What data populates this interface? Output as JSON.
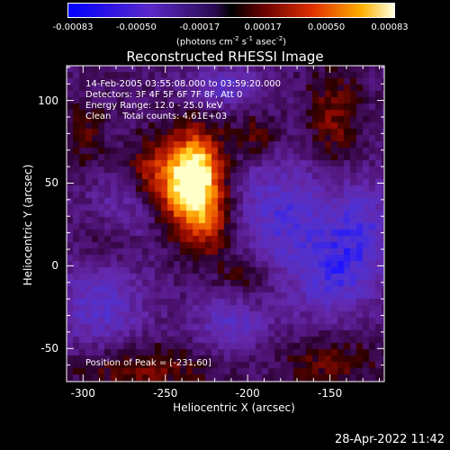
{
  "colorbar": {
    "tick_labels": [
      "-0.00083",
      "-0.00050",
      "-0.00017",
      "0.00017",
      "0.00050",
      "0.00083"
    ],
    "unit_prefix": "(photons cm",
    "unit_exp1": "-2",
    "unit_mid1": " s",
    "unit_exp2": "-1",
    "unit_mid2": " asec",
    "unit_exp3": "-2",
    "unit_suffix": ")"
  },
  "annotations": {
    "time_range": "14-Feb-2005 03:55:08.000 to 03:59:20.000",
    "detectors": "Detectors: 3F 4F 5F 6F 7F 8F, Att 0",
    "energy": "Energy Range: 12.0 - 25.0 keV",
    "clean": "Clean    Total counts: 4.61E+03",
    "peak": "Position of Peak = [-231,60]"
  },
  "timestamp": "28-Apr-2022 11:42",
  "chart_data": {
    "type": "heatmap",
    "title": "Reconstructed RHESSI Image",
    "xlabel": "Heliocentric X (arcsec)",
    "ylabel": "Heliocentric Y (arcsec)",
    "xlim": [
      -310,
      -117
    ],
    "ylim": [
      -70,
      121
    ],
    "x_ticks": [
      -300,
      -250,
      -200,
      -150
    ],
    "y_ticks": [
      -50,
      0,
      50,
      100
    ],
    "colorbar_range": [
      -0.00083,
      0.00083
    ],
    "peak_position": [
      -231,
      60
    ],
    "colors": {
      "low": "#0000ff",
      "mid_low": "#6a2cc8",
      "zero": "#000000",
      "mid_high": "#cc2200",
      "high": "#ffff99"
    },
    "features": [
      {
        "x": -231,
        "y": 60,
        "sx": 12,
        "sy": 18,
        "amp": 0.00083
      },
      {
        "x": -236,
        "y": 42,
        "sx": 14,
        "sy": 16,
        "amp": 0.00055
      },
      {
        "x": -224,
        "y": 22,
        "sx": 14,
        "sy": 16,
        "amp": 0.00045
      },
      {
        "x": -258,
        "y": 58,
        "sx": 12,
        "sy": 14,
        "amp": 0.0004
      },
      {
        "x": -282,
        "y": 18,
        "sx": 14,
        "sy": 12,
        "amp": 0.0003
      },
      {
        "x": -200,
        "y": -8,
        "sx": 12,
        "sy": 10,
        "amp": 0.0003
      },
      {
        "x": -195,
        "y": 78,
        "sx": 10,
        "sy": 10,
        "amp": 0.0003
      },
      {
        "x": -148,
        "y": 88,
        "sx": 12,
        "sy": 22,
        "amp": 0.00035
      },
      {
        "x": -262,
        "y": -62,
        "sx": 30,
        "sy": 10,
        "amp": 0.00035
      },
      {
        "x": -150,
        "y": -58,
        "sx": 22,
        "sy": 10,
        "amp": 0.0003
      },
      {
        "x": -300,
        "y": 80,
        "sx": 10,
        "sy": 14,
        "amp": 0.00025
      },
      {
        "x": -215,
        "y": 108,
        "sx": 16,
        "sy": 8,
        "amp": -0.0004
      },
      {
        "x": -180,
        "y": 30,
        "sx": 26,
        "sy": 26,
        "amp": -0.00045
      },
      {
        "x": -130,
        "y": 20,
        "sx": 16,
        "sy": 22,
        "amp": -0.0004
      },
      {
        "x": -275,
        "y": 30,
        "sx": 16,
        "sy": 16,
        "amp": -0.00035
      },
      {
        "x": -290,
        "y": -25,
        "sx": 20,
        "sy": 18,
        "amp": -0.0004
      },
      {
        "x": -210,
        "y": -35,
        "sx": 16,
        "sy": 14,
        "amp": -0.00035
      },
      {
        "x": -150,
        "y": -10,
        "sx": 18,
        "sy": 16,
        "amp": -0.00035
      }
    ]
  }
}
